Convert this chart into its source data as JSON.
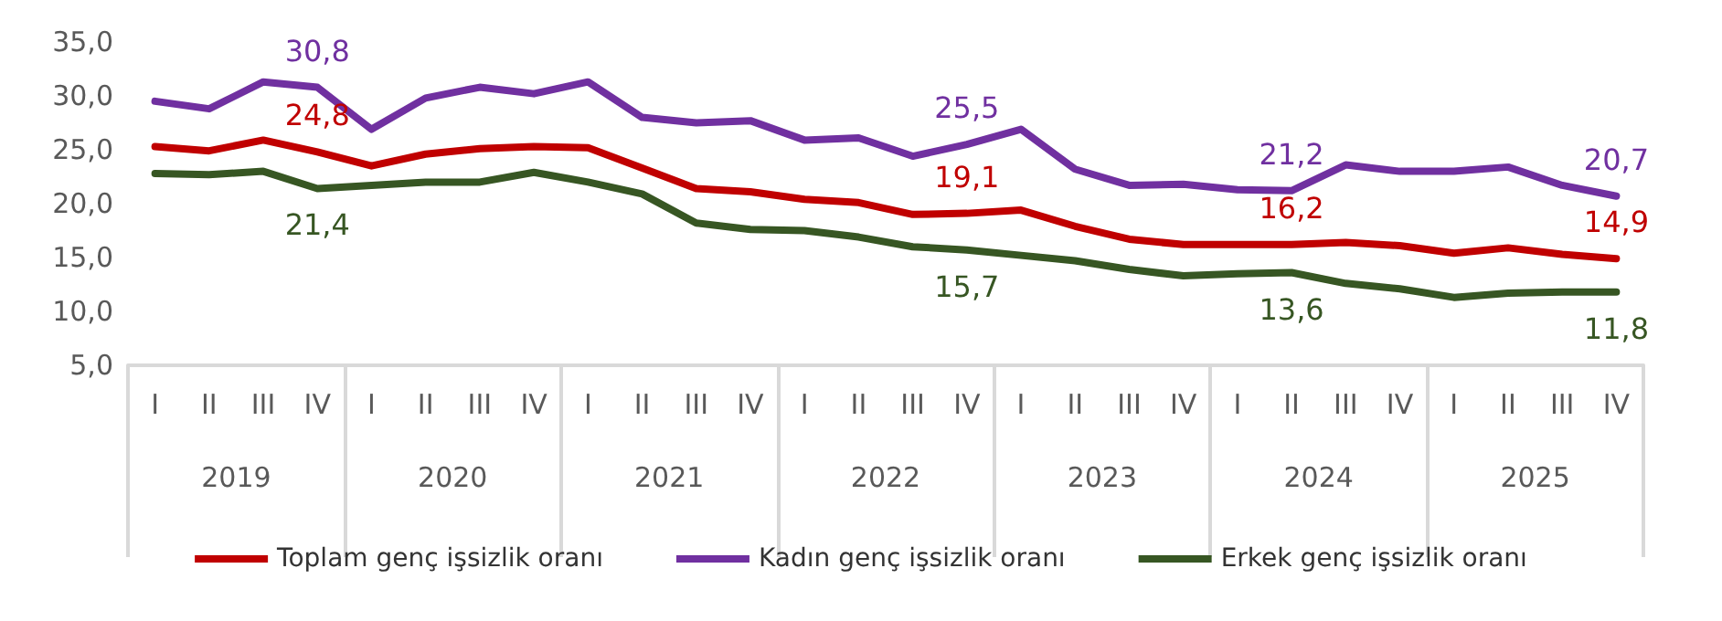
{
  "chart_data": {
    "type": "line",
    "categories": [
      "I",
      "II",
      "III",
      "IV",
      "I",
      "II",
      "III",
      "IV",
      "I",
      "II",
      "III",
      "IV",
      "I",
      "II",
      "III",
      "IV",
      "I",
      "II",
      "III",
      "IV",
      "I",
      "II",
      "III",
      "IV",
      "I",
      "II",
      "III",
      "IV"
    ],
    "annotations": [
      "2019",
      "2020",
      "2021",
      "2022",
      "2023",
      "2024",
      "2025"
    ],
    "ylim": [
      5,
      35
    ],
    "yticks": [
      {
        "value": 5,
        "label": "5,0"
      },
      {
        "value": 10,
        "label": "10,0"
      },
      {
        "value": 15,
        "label": "15,0"
      },
      {
        "value": 20,
        "label": "20,0"
      },
      {
        "value": 25,
        "label": "25,0"
      },
      {
        "value": 30,
        "label": "30,0"
      },
      {
        "value": 35,
        "label": "35,0"
      }
    ],
    "grid": false,
    "legend": "bottom",
    "marker": "none",
    "line_style": "solid",
    "series": [
      {
        "name": "Toplam genç işsizlik oranı",
        "color": "#c00000",
        "values": [
          25.3,
          24.9,
          25.9,
          24.8,
          23.5,
          24.6,
          25.1,
          25.3,
          25.2,
          23.3,
          21.4,
          21.1,
          20.4,
          20.1,
          19.0,
          19.1,
          19.4,
          17.9,
          16.7,
          16.2,
          16.2,
          16.2,
          16.4,
          16.1,
          15.4,
          15.9,
          15.3,
          14.9
        ],
        "value_labels": [
          null,
          null,
          null,
          "24,8",
          null,
          null,
          null,
          null,
          null,
          null,
          null,
          null,
          null,
          null,
          null,
          "19,1",
          null,
          null,
          null,
          null,
          null,
          "16,2",
          null,
          null,
          null,
          null,
          null,
          "14,9"
        ]
      },
      {
        "name": "Kadın genç işsizlik oranı",
        "color": "#7030a0",
        "values": [
          29.5,
          28.8,
          31.3,
          30.8,
          26.9,
          29.8,
          30.8,
          30.2,
          31.3,
          28.0,
          27.5,
          27.7,
          25.9,
          26.1,
          24.4,
          25.5,
          26.9,
          23.2,
          21.7,
          21.8,
          21.3,
          21.2,
          23.6,
          23.0,
          23.0,
          23.4,
          21.7,
          20.7
        ],
        "value_labels": [
          null,
          null,
          null,
          "30,8",
          null,
          null,
          null,
          null,
          null,
          null,
          null,
          null,
          null,
          null,
          null,
          "25,5",
          null,
          null,
          null,
          null,
          null,
          "21,2",
          null,
          null,
          null,
          null,
          null,
          "20,7"
        ]
      },
      {
        "name": "Erkek genç işsizlik oranı",
        "color": "#375623",
        "values": [
          22.8,
          22.7,
          23.0,
          21.4,
          21.7,
          22.0,
          22.0,
          22.9,
          22.0,
          20.9,
          18.2,
          17.6,
          17.5,
          16.9,
          16.0,
          15.7,
          15.2,
          14.7,
          13.9,
          13.3,
          13.5,
          13.6,
          12.6,
          12.1,
          11.3,
          11.7,
          11.8,
          11.8
        ],
        "value_labels": [
          null,
          null,
          null,
          "21,4",
          null,
          null,
          null,
          null,
          null,
          null,
          null,
          null,
          null,
          null,
          null,
          "15,7",
          null,
          null,
          null,
          null,
          null,
          "13,6",
          null,
          null,
          null,
          null,
          null,
          "11,8"
        ]
      }
    ]
  }
}
